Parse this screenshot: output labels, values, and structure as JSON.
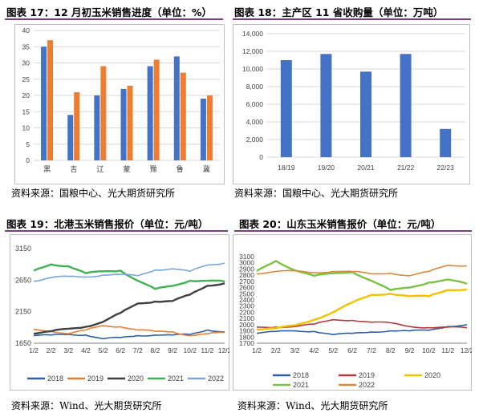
{
  "panels": [
    {
      "title": "图表 17：12 月初玉米销售进度（单位：%）",
      "source": "资料来源：国粮中心、光大期货研究所"
    },
    {
      "title": "图表 18：主产区 11 省收购量（单位：万吨）",
      "source": "资料来源：国粮中心、光大期货研究所"
    },
    {
      "title": "图表 19：北港玉米销售报价（单位：元/吨）",
      "source": "资料来源：Wind、光大期货研究所"
    },
    {
      "title": "图表 20：山东玉米销售报价（单位：元/吨）",
      "source": "资料来源：Wind、光大期货研究所"
    }
  ],
  "colors": {
    "rule": "#7a3f7d",
    "blue": "#4472c4",
    "orange": "#ed7d31"
  },
  "chart_data": [
    {
      "type": "bar",
      "categories": [
        "黑",
        "吉",
        "辽",
        "蒙",
        "豫",
        "鲁",
        "冀"
      ],
      "series": [
        {
          "color": "#4472c4",
          "values": [
            35,
            14,
            20,
            22,
            29,
            32,
            19
          ]
        },
        {
          "color": "#ed7d31",
          "values": [
            37,
            21,
            29,
            23,
            31,
            27,
            20
          ]
        }
      ],
      "ylim": [
        0,
        40
      ],
      "yticks": [
        "0",
        "5",
        "10",
        "15",
        "20",
        "25",
        "30",
        "35",
        "40"
      ],
      "grid": true
    },
    {
      "type": "bar",
      "categories": [
        "18/19",
        "19/20",
        "20/21",
        "21/22",
        "22/23"
      ],
      "values": [
        11000,
        11700,
        9700,
        11700,
        3200
      ],
      "color": "#4472c4",
      "ylim": [
        0,
        14000
      ],
      "yticks": [
        "0",
        "2,000",
        "4,000",
        "6,000",
        "8,000",
        "10,000",
        "12,000",
        "14,000"
      ],
      "grid": true
    },
    {
      "type": "line",
      "x": [
        "1/2",
        "2/2",
        "3/2",
        "4/2",
        "5/2",
        "6/2",
        "7/2",
        "8/2",
        "9/2",
        "10/2",
        "11/2",
        "12/2"
      ],
      "ylim": [
        1650,
        3150
      ],
      "yticks": [
        "1650",
        "2150",
        "2650",
        "3150"
      ],
      "legend_position": "bottom",
      "series": [
        {
          "name": "2018",
          "color": "#2e5fa8",
          "values": [
            1770,
            1780,
            1790,
            1780,
            1720,
            1740,
            1770,
            1780,
            1780,
            1790,
            1860,
            1830
          ]
        },
        {
          "name": "2019",
          "color": "#ed7d31",
          "values": [
            1870,
            1840,
            1800,
            1860,
            1930,
            1910,
            1860,
            1840,
            1830,
            1770,
            1800,
            1820
          ]
        },
        {
          "name": "2020",
          "color": "#404040",
          "values": [
            1800,
            1840,
            1880,
            1910,
            1990,
            2130,
            2280,
            2310,
            2320,
            2420,
            2560,
            2600
          ]
        },
        {
          "name": "2021",
          "color": "#3fb34f",
          "values": [
            2800,
            2900,
            2870,
            2760,
            2790,
            2800,
            2640,
            2510,
            2560,
            2640,
            2640,
            2630
          ]
        },
        {
          "name": "2022",
          "color": "#7aa7d9",
          "values": [
            2630,
            2690,
            2710,
            2700,
            2730,
            2740,
            2720,
            2810,
            2830,
            2790,
            2890,
            2920
          ]
        }
      ]
    },
    {
      "type": "line",
      "x": [
        "1/2",
        "2/2",
        "3/2",
        "4/2",
        "5/2",
        "6/2",
        "7/2",
        "8/2",
        "9/2",
        "10/2",
        "11/2",
        "12/2"
      ],
      "ylim": [
        1700,
        3100
      ],
      "yticks": [
        "1700",
        "1800",
        "1900",
        "2000",
        "2100",
        "2200",
        "2300",
        "2400",
        "2500",
        "2600",
        "2700",
        "2800",
        "2900",
        "3000",
        "3100"
      ],
      "legend_position": "bottom",
      "series": [
        {
          "name": "2018",
          "color": "#2e5fa8",
          "values": [
            1860,
            1890,
            1900,
            1890,
            1840,
            1860,
            1880,
            1900,
            1900,
            1910,
            1970,
            2000
          ]
        },
        {
          "name": "2019",
          "color": "#b63a3a",
          "values": [
            1960,
            1960,
            1970,
            2010,
            2080,
            2070,
            2040,
            2030,
            1970,
            1950,
            1960,
            1950
          ]
        },
        {
          "name": "2020",
          "color": "#f2c200",
          "values": [
            1920,
            1940,
            1990,
            2080,
            2200,
            2360,
            2480,
            2500,
            2460,
            2460,
            2560,
            2570
          ]
        },
        {
          "name": "2021",
          "color": "#7cc242",
          "values": [
            2870,
            3030,
            2880,
            2790,
            2830,
            2850,
            2710,
            2560,
            2600,
            2680,
            2730,
            2660
          ]
        },
        {
          "name": "2022",
          "color": "#d98a3b",
          "values": [
            2820,
            2860,
            2870,
            2840,
            2860,
            2860,
            2820,
            2830,
            2790,
            2860,
            2960,
            2950
          ]
        }
      ]
    }
  ]
}
